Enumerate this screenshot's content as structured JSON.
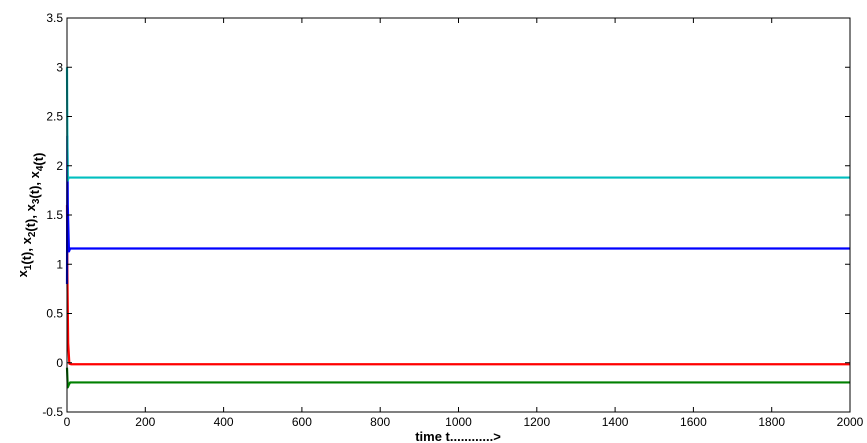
{
  "chart_data": {
    "type": "line",
    "title": "",
    "xlabel": "time t............>",
    "ylabel_parts": [
      {
        "text": "x",
        "sub": "1"
      },
      {
        "text": "(t), x",
        "sub": "2"
      },
      {
        "text": "(t), x",
        "sub": "3"
      },
      {
        "text": "(t), x",
        "sub": "4"
      },
      {
        "text": "(t)",
        "sub": ""
      }
    ],
    "xlim": [
      0,
      2000
    ],
    "ylim": [
      -0.5,
      3.5
    ],
    "xticks": [
      0,
      200,
      400,
      600,
      800,
      1000,
      1200,
      1400,
      1600,
      1800,
      2000
    ],
    "yticks": [
      -0.5,
      0,
      0.5,
      1,
      1.5,
      2,
      2.5,
      3,
      3.5
    ],
    "xtick_labels": [
      "0",
      "200",
      "400",
      "600",
      "800",
      "1000",
      "1200",
      "1400",
      "1600",
      "1800",
      "2000"
    ],
    "ytick_labels": [
      "-0.5",
      "0",
      "0.5",
      "1",
      "1.5",
      "2",
      "2.5",
      "3",
      "3.5"
    ],
    "grid": false,
    "series": [
      {
        "color": "#ff0000",
        "x": [
          0,
          1,
          3,
          6,
          10,
          2000
        ],
        "y": [
          1.6,
          0.9,
          0.2,
          -0.01,
          -0.015,
          -0.015
        ]
      },
      {
        "color": "#008000",
        "x": [
          0,
          2,
          5,
          8,
          12,
          2000
        ],
        "y": [
          -0.05,
          -0.25,
          -0.22,
          -0.2,
          -0.2,
          -0.2
        ]
      },
      {
        "color": "#0000ff",
        "x": [
          0,
          1,
          2,
          5,
          8,
          2000
        ],
        "y": [
          0.8,
          2.3,
          1.6,
          1.13,
          1.16,
          1.16
        ]
      },
      {
        "color": "#00bfbf",
        "x": [
          0,
          1,
          2,
          4,
          8,
          2000
        ],
        "y": [
          3.0,
          2.2,
          1.85,
          1.88,
          1.88,
          1.88
        ]
      }
    ]
  }
}
